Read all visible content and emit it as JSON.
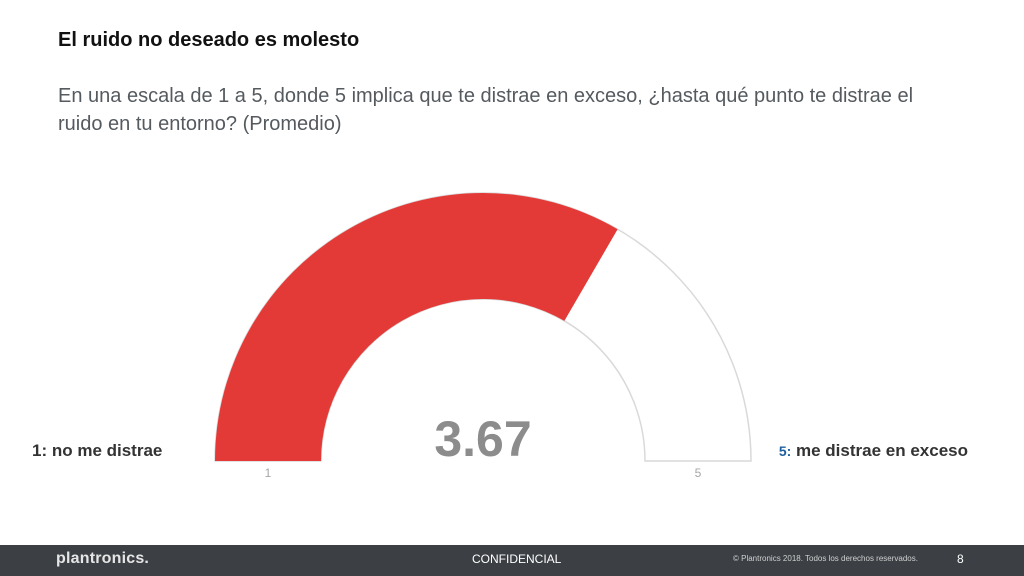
{
  "slide": {
    "title": "El ruido no deseado es molesto",
    "subtitle": "En una escala de 1 a 5, donde 5 implica que te distrae en exceso, ¿hasta qué punto te distrae el ruido en tu entorno? (Promedio)",
    "left_label": "1: no me distrae",
    "right_label_num": "5:",
    "right_label_text": " me distrae en exceso"
  },
  "chart_data": {
    "type": "gauge",
    "value": 3.67,
    "value_label": "3.67",
    "min": 1,
    "max": 5,
    "min_label": "1",
    "max_label": "5",
    "fill_color": "#e33a37",
    "track_color": "#ffffff",
    "track_border_color": "#d9d9d9"
  },
  "footer": {
    "logo": "plantronics.",
    "confidential": "CONFIDENCIAL",
    "copyright": "© Plantronics 2018. Todos los derechos reservados.",
    "page_number": "8"
  }
}
